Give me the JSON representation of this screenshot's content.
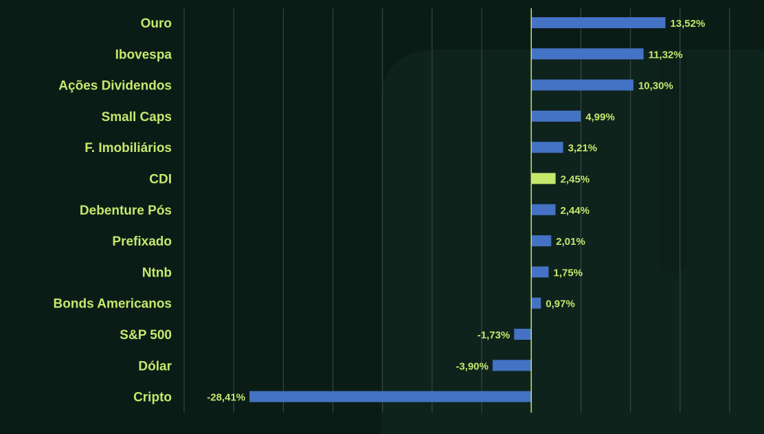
{
  "colors": {
    "background": "#0b1c17",
    "label_text": "#c5e86c",
    "bar": "#4472c4",
    "highlight_bar": "#c5e86c",
    "grid": "#3d4f48",
    "zero_line": "#c5e86c"
  },
  "chart_data": {
    "type": "bar",
    "orientation": "horizontal",
    "categories": [
      "Ouro",
      "Ibovespa",
      "Ações Dividendos",
      "Small Caps",
      "F. Imobiliários",
      "CDI",
      "Debenture Pós",
      "Prefixado",
      "Ntnb",
      "Bonds Americanos",
      "S&P 500",
      "Dólar",
      "Cripto"
    ],
    "values": [
      13.52,
      11.32,
      10.3,
      4.99,
      3.21,
      2.45,
      2.44,
      2.01,
      1.75,
      0.97,
      -1.73,
      -3.9,
      -28.41
    ],
    "value_labels": [
      "13,52%",
      "11,32%",
      "10,30%",
      "4,99%",
      "3,21%",
      "2,45%",
      "2,44%",
      "2,01%",
      "1,75%",
      "0,97%",
      "-1,73%",
      "-3,90%",
      "-28,41%"
    ],
    "highlight": "CDI",
    "xlim": [
      -35,
      20
    ],
    "grid_step": 5,
    "grid": true,
    "title": "",
    "xlabel": "",
    "ylabel": ""
  }
}
